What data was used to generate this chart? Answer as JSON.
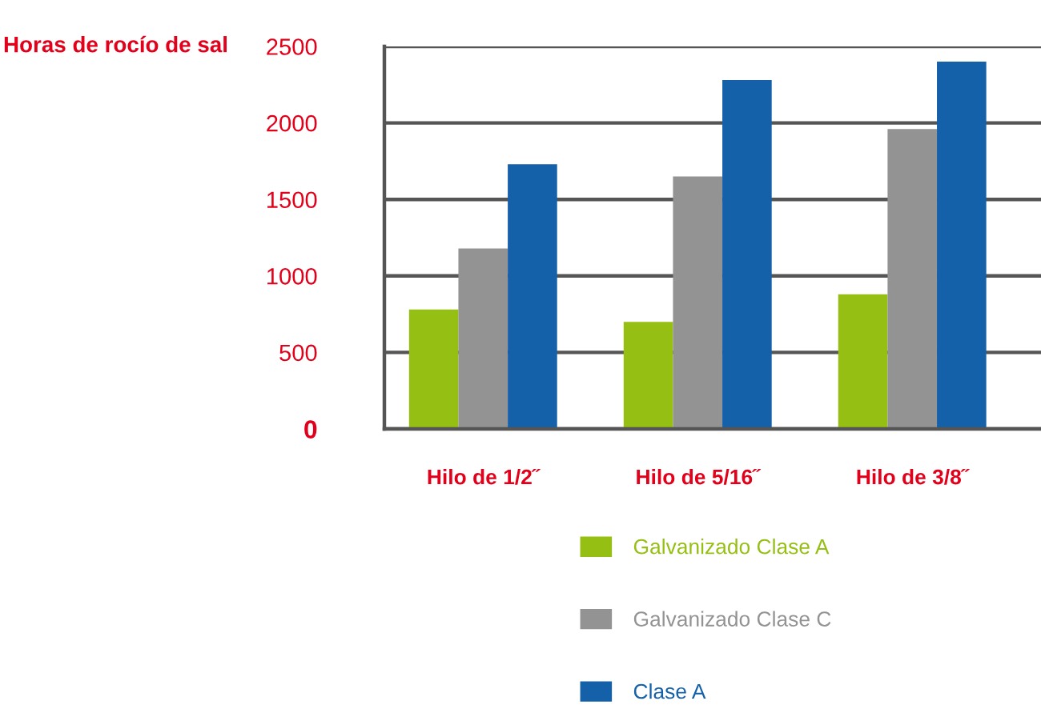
{
  "chart_data": {
    "type": "bar",
    "ylabel": "Horas de rocío de sal",
    "categories": [
      "Hilo de 1/2˝",
      "Hilo de 5/16˝",
      "Hilo de 3/8˝"
    ],
    "series": [
      {
        "name": "Galvanizado Clase A",
        "color": "#95bf13",
        "values": [
          780,
          700,
          880
        ]
      },
      {
        "name": "Galvanizado Clase C",
        "color": "#939393",
        "values": [
          1180,
          1650,
          1960
        ]
      },
      {
        "name": "Clase A",
        "color": "#1561a9",
        "values": [
          1730,
          2280,
          2400
        ]
      }
    ],
    "ylim": [
      0,
      2500
    ],
    "yticks": [
      0,
      500,
      1000,
      1500,
      2000,
      2500
    ],
    "grid": "y",
    "legend": "bottom"
  }
}
